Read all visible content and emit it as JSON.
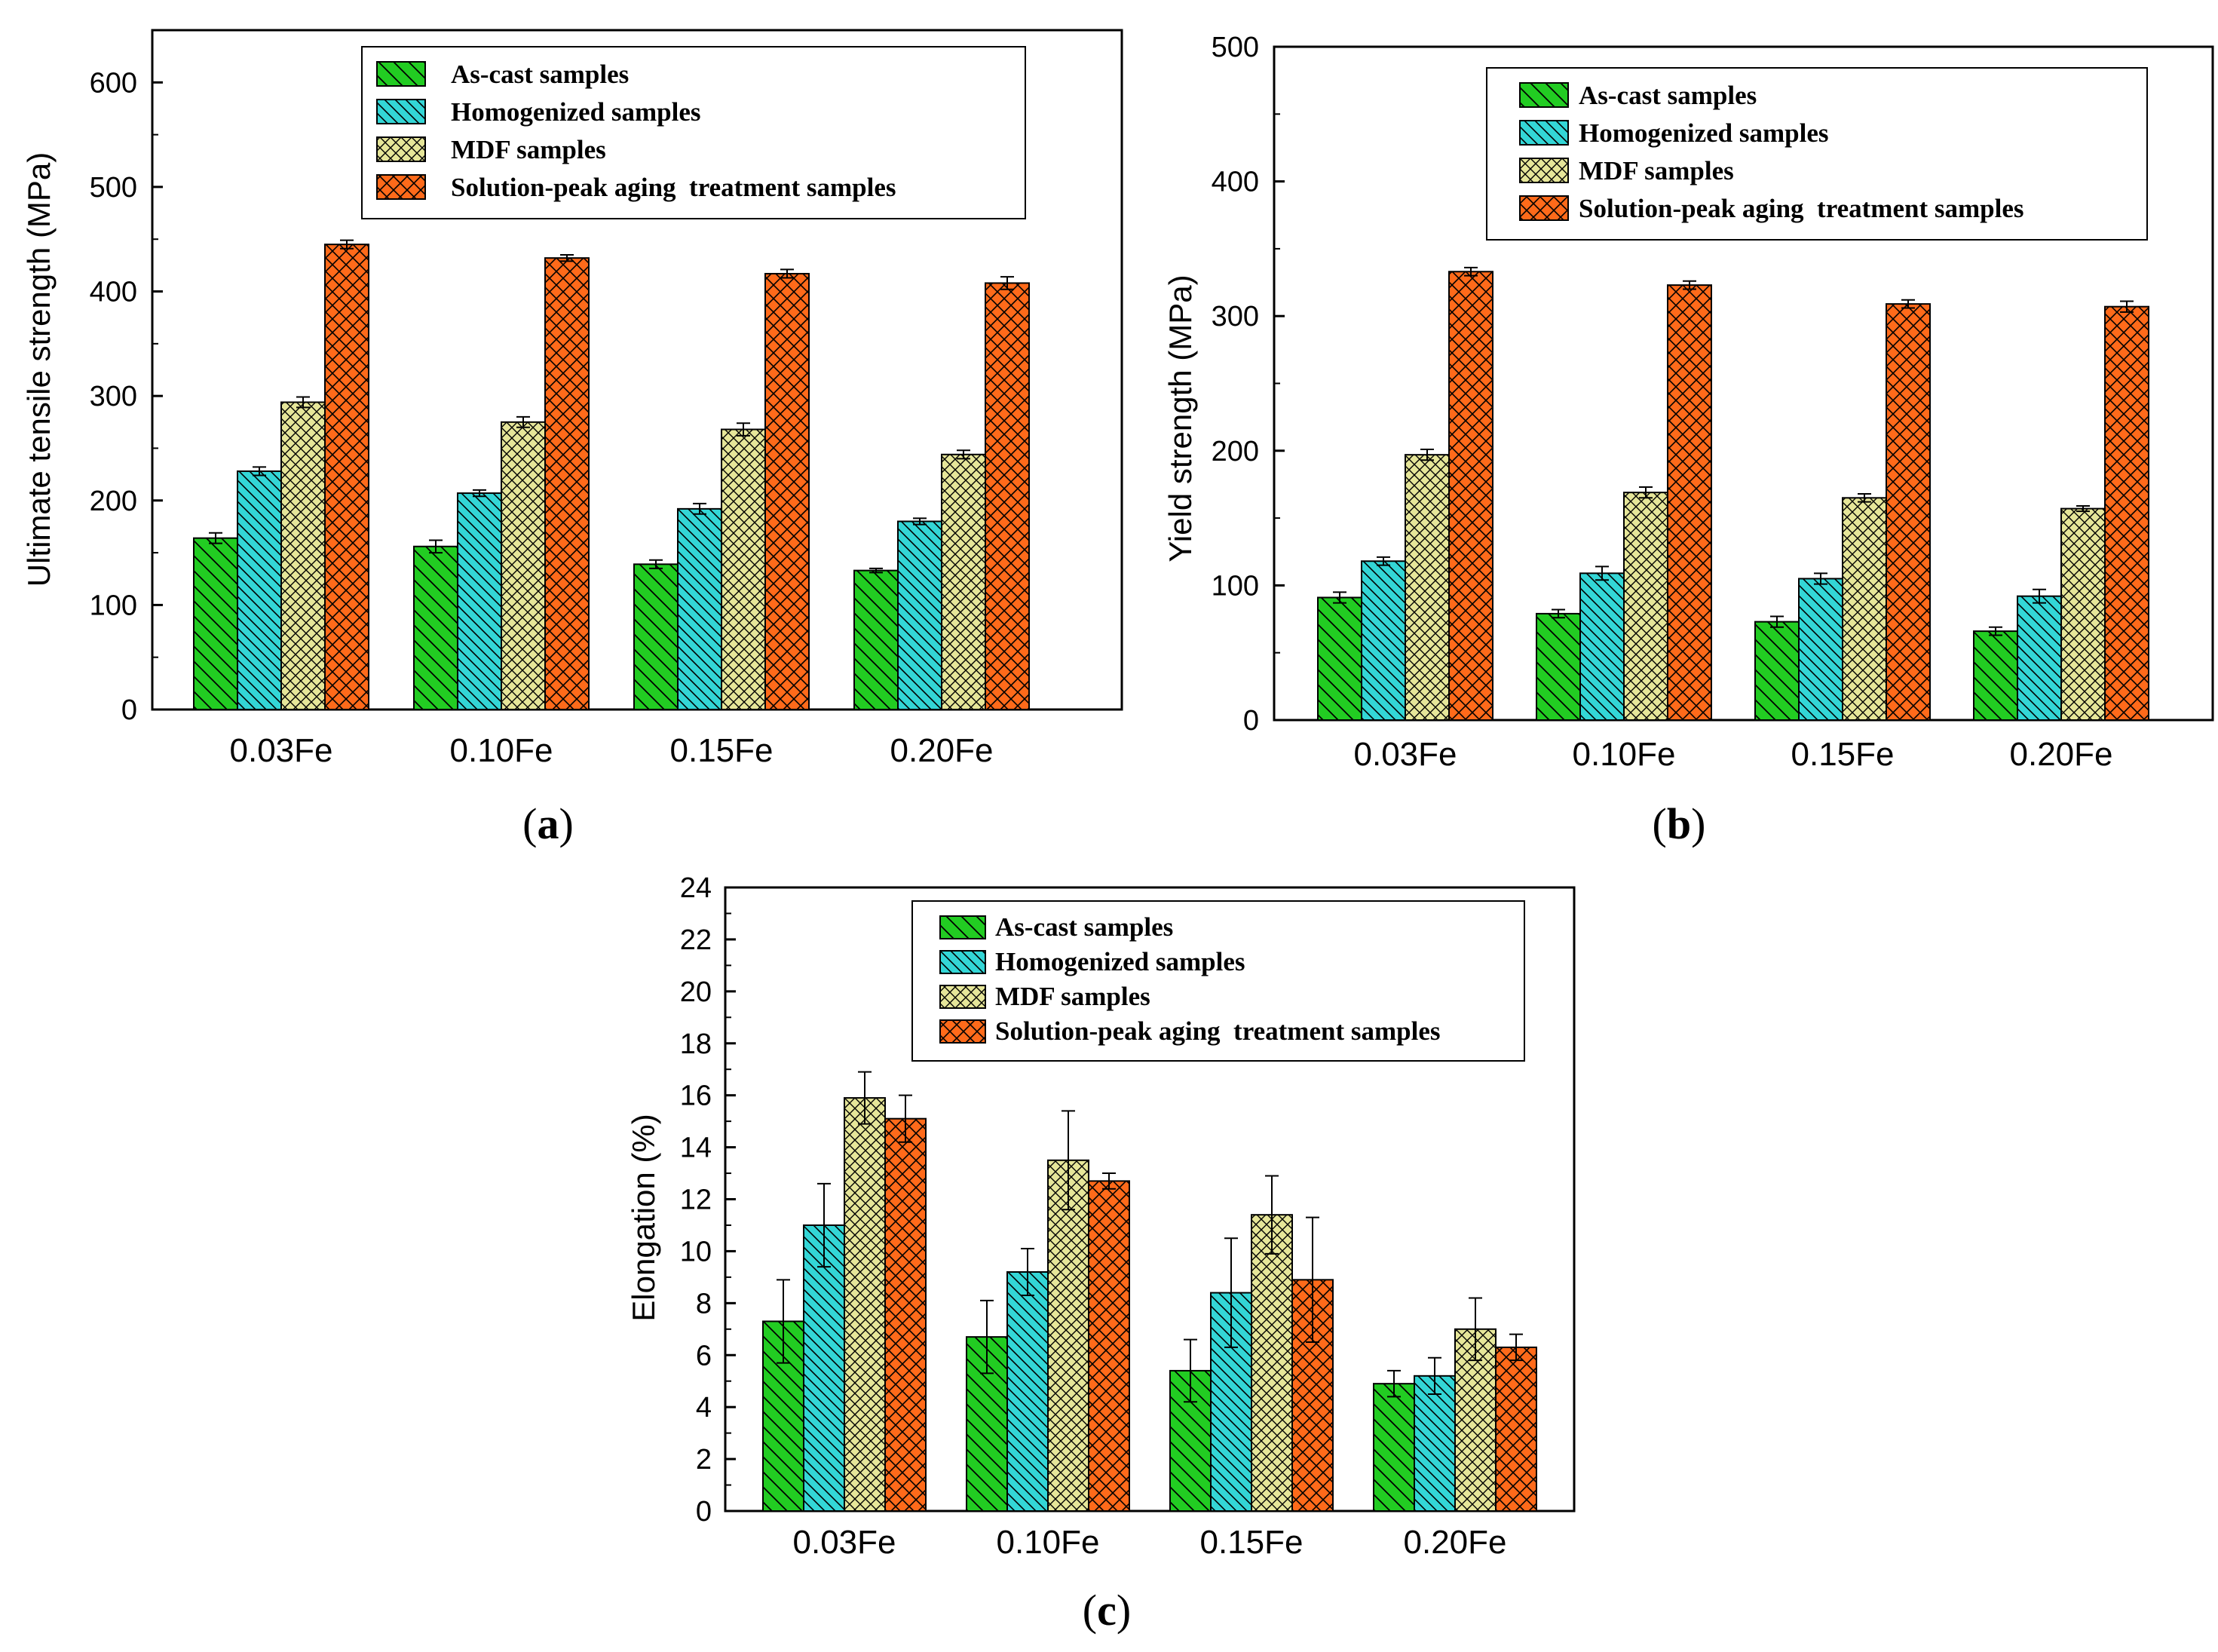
{
  "colors": {
    "as_cast": "#22cc22",
    "homogenized": "#33d6d6",
    "mdf": "#e6e699",
    "solution": "#ff6a1a",
    "hatch": "#000000"
  },
  "chart_data": [
    {
      "type": "bar",
      "panel": "a",
      "panel_label": "(a)",
      "panel_label_open": "(",
      "panel_label_letter": "a",
      "panel_label_close": ")",
      "ylabel": "Ultimate tensile strength (MPa)",
      "xlabel": "",
      "categories": [
        "0.03Fe",
        "0.10Fe",
        "0.15Fe",
        "0.20Fe"
      ],
      "ylim": [
        0,
        650
      ],
      "yticks": [
        0,
        100,
        200,
        300,
        400,
        500,
        600
      ],
      "legend": "top-right",
      "series": [
        {
          "name": "As-cast samples",
          "values": [
            164,
            156,
            139,
            133
          ],
          "errors": [
            5,
            6,
            4,
            2
          ]
        },
        {
          "name": "Homogenized samples",
          "values": [
            228,
            207,
            192,
            180
          ],
          "errors": [
            4,
            3,
            5,
            3
          ]
        },
        {
          "name": "MDF samples",
          "values": [
            294,
            275,
            268,
            244
          ],
          "errors": [
            5,
            5,
            6,
            4
          ]
        },
        {
          "name": "Solution-peak aging  treatment samples",
          "values": [
            445,
            432,
            417,
            408
          ],
          "errors": [
            4,
            3,
            4,
            6
          ]
        }
      ]
    },
    {
      "type": "bar",
      "panel": "b",
      "panel_label": "(b)",
      "panel_label_open": "(",
      "panel_label_letter": "b",
      "panel_label_close": ")",
      "ylabel": "Yield strength (MPa)",
      "xlabel": "",
      "categories": [
        "0.03Fe",
        "0.10Fe",
        "0.15Fe",
        "0.20Fe"
      ],
      "ylim": [
        0,
        500
      ],
      "yticks": [
        0,
        100,
        200,
        300,
        400,
        500
      ],
      "legend": "top-right",
      "series": [
        {
          "name": "As-cast samples",
          "values": [
            91,
            79,
            73,
            66
          ],
          "errors": [
            4,
            3,
            4,
            3
          ]
        },
        {
          "name": "Homogenized samples",
          "values": [
            118,
            109,
            105,
            92
          ],
          "errors": [
            3,
            5,
            4,
            5
          ]
        },
        {
          "name": "MDF samples",
          "values": [
            197,
            169,
            165,
            157
          ],
          "errors": [
            4,
            4,
            3,
            2
          ]
        },
        {
          "name": "Solution-peak aging  treatment samples",
          "values": [
            333,
            323,
            309,
            307
          ],
          "errors": [
            3,
            3,
            3,
            4
          ]
        }
      ]
    },
    {
      "type": "bar",
      "panel": "c",
      "panel_label": "(c)",
      "panel_label_open": "(",
      "panel_label_letter": "c",
      "panel_label_close": ")",
      "ylabel": "Elongation (%)",
      "xlabel": "",
      "categories": [
        "0.03Fe",
        "0.10Fe",
        "0.15Fe",
        "0.20Fe"
      ],
      "ylim": [
        0,
        24
      ],
      "yticks": [
        0,
        2,
        4,
        6,
        8,
        10,
        12,
        14,
        16,
        18,
        20,
        22,
        24
      ],
      "legend": "top-right",
      "series": [
        {
          "name": "As-cast samples",
          "values": [
            7.3,
            6.7,
            5.4,
            4.9
          ],
          "errors": [
            1.6,
            1.4,
            1.2,
            0.5
          ]
        },
        {
          "name": "Homogenized samples",
          "values": [
            11.0,
            9.2,
            8.4,
            5.2
          ],
          "errors": [
            1.6,
            0.9,
            2.1,
            0.7
          ]
        },
        {
          "name": "MDF samples",
          "values": [
            15.9,
            13.5,
            11.4,
            7.0
          ],
          "errors": [
            1.0,
            1.9,
            1.5,
            1.2
          ]
        },
        {
          "name": "Solution-peak aging  treatment samples",
          "values": [
            15.1,
            12.7,
            8.9,
            6.3
          ],
          "errors": [
            0.9,
            0.3,
            2.4,
            0.5
          ]
        }
      ]
    }
  ]
}
